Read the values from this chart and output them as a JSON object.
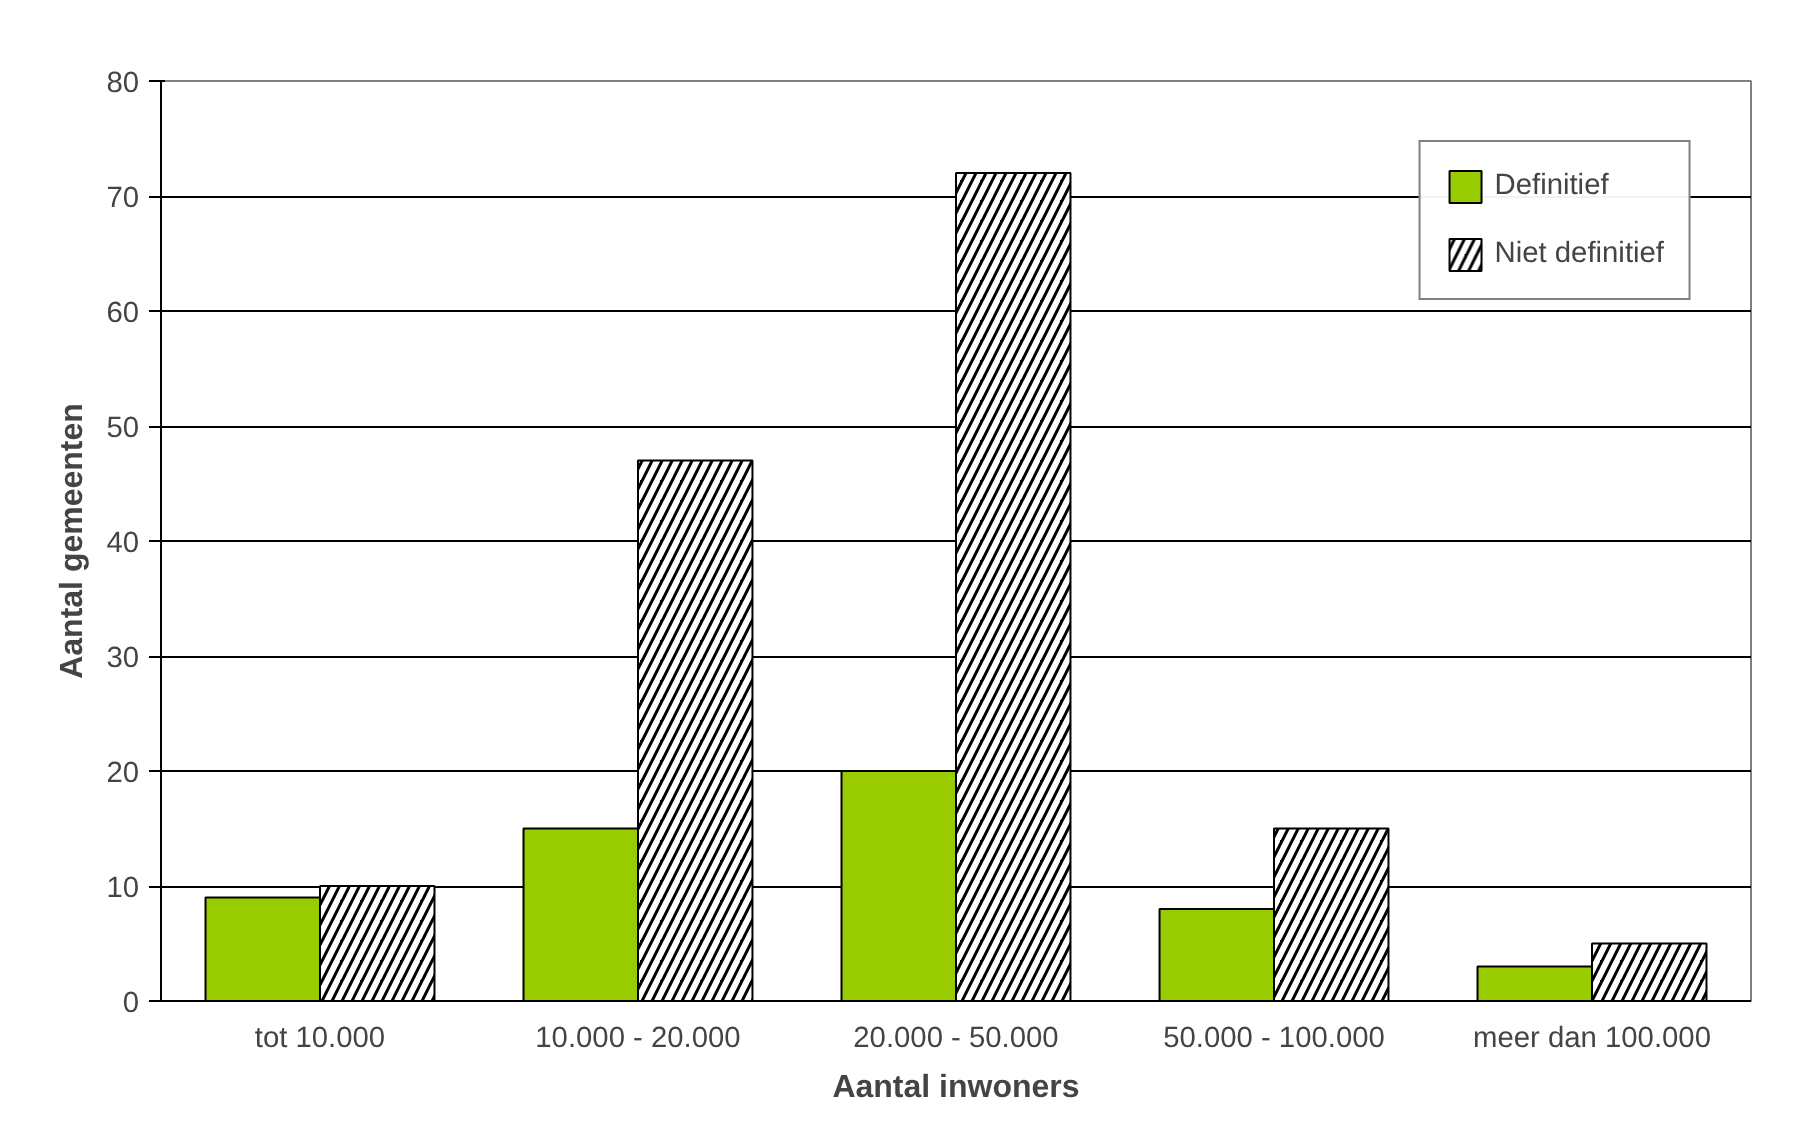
{
  "chart_data": {
    "type": "bar",
    "xlabel": "Aantal inwoners",
    "ylabel": "Aantal gemeenten",
    "categories": [
      "tot 10.000",
      "10.000 - 20.000",
      "20.000 - 50.000",
      "50.000 - 100.000",
      "meer dan 100.000"
    ],
    "series": [
      {
        "name": "Definitief",
        "color": "#99cc00",
        "values": [
          9,
          15,
          20,
          8,
          3
        ]
      },
      {
        "name": "Niet definitief",
        "color": "#000000",
        "values": [
          10,
          47,
          72,
          15,
          5
        ]
      }
    ],
    "ylim": [
      0,
      80
    ],
    "yticks": [
      0,
      10,
      20,
      30,
      40,
      50,
      60,
      70,
      80
    ],
    "grid": "y",
    "legend": "top right"
  }
}
